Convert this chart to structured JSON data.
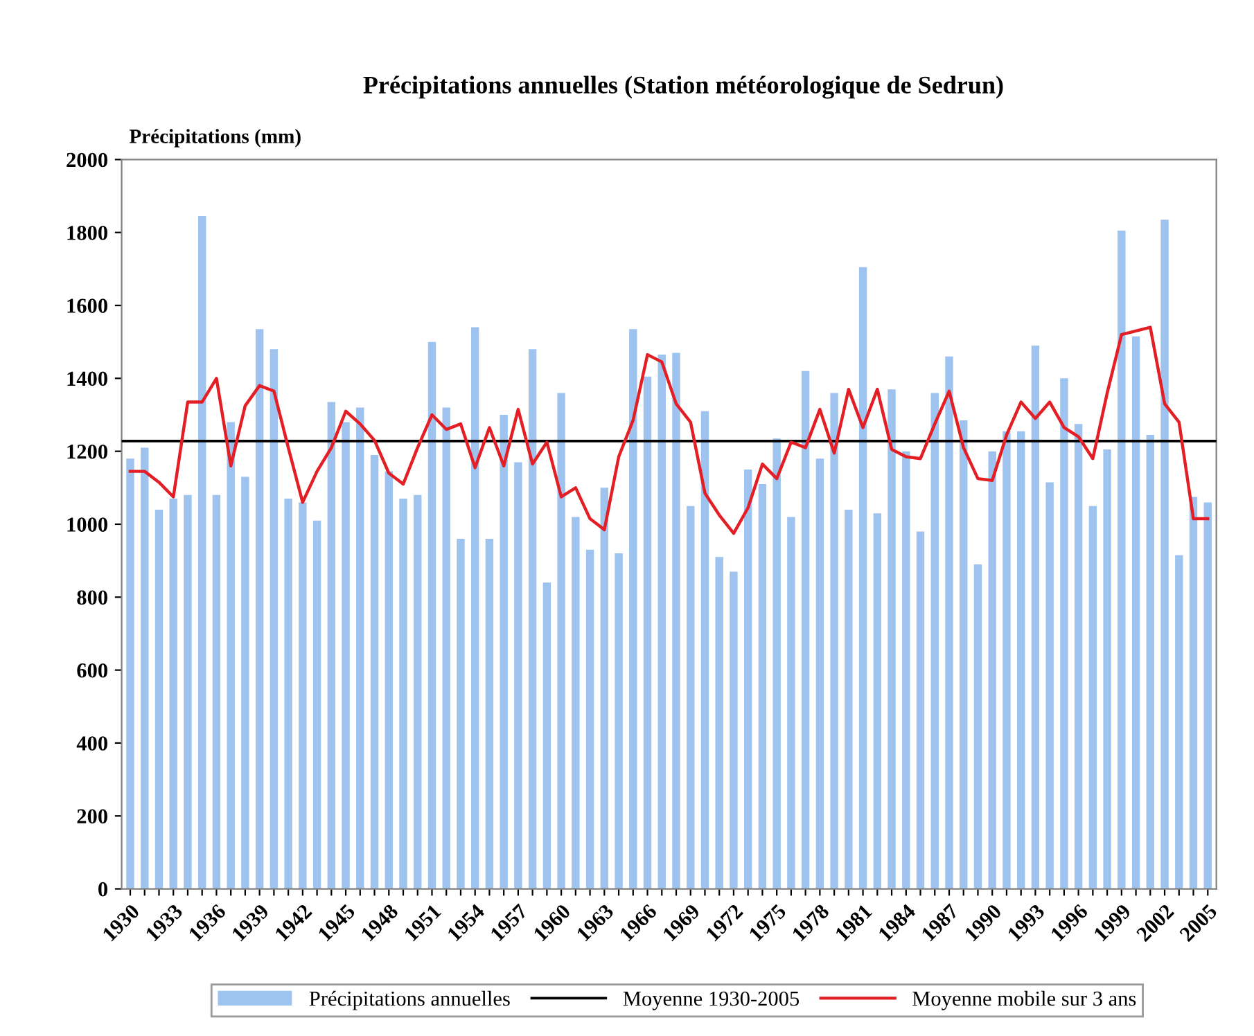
{
  "chart_data": {
    "type": "bar",
    "title": "Précipitations annuelles (Station météorologique de Sedrun)",
    "ylabel": "Précipitations (mm)",
    "categories": [
      "1930",
      null,
      null,
      "1933",
      null,
      null,
      "1936",
      null,
      null,
      "1939",
      null,
      null,
      "1942",
      null,
      null,
      "1945",
      null,
      null,
      "1948",
      null,
      null,
      "1951",
      null,
      null,
      "1954",
      null,
      null,
      "1957",
      null,
      null,
      "1960",
      null,
      null,
      "1963",
      null,
      null,
      "1966",
      null,
      null,
      "1969",
      null,
      null,
      "1972",
      null,
      null,
      "1975",
      null,
      null,
      "1978",
      null,
      null,
      "1981",
      null,
      null,
      "1984",
      null,
      null,
      "1987",
      null,
      null,
      "1990",
      null,
      null,
      "1993",
      null,
      null,
      "1996",
      null,
      null,
      "1999",
      null,
      null,
      "2002",
      null,
      null,
      "2005"
    ],
    "series": [
      {
        "name": "Précipitations annuelles",
        "color": "#9dc3ee",
        "values": [
          1180,
          1210,
          1040,
          1070,
          1080,
          1845,
          1080,
          1280,
          1130,
          1535,
          1480,
          1070,
          1060,
          1010,
          1335,
          1280,
          1320,
          1190,
          1145,
          1070,
          1080,
          1500,
          1320,
          960,
          1540,
          960,
          1300,
          1170,
          1480,
          840,
          1360,
          1020,
          930,
          1100,
          920,
          1535,
          1405,
          1465,
          1470,
          1050,
          1310,
          910,
          870,
          1150,
          1110,
          1235,
          1020,
          1420,
          1180,
          1360,
          1040,
          1705,
          1030,
          1370,
          1200,
          980,
          1360,
          1460,
          1285,
          890,
          1200,
          1255,
          1255,
          1490,
          1115,
          1400,
          1275,
          1050,
          1205,
          1805,
          1515,
          1245,
          1835,
          915,
          1075,
          1060
        ]
      },
      {
        "name": "Moyenne mobile sur 3 ans",
        "type": "line",
        "color": "#e31e24",
        "values": [
          1145,
          1145,
          1115,
          1075,
          1335,
          1335,
          1400,
          1160,
          1325,
          1380,
          1365,
          1210,
          1060,
          1145,
          1210,
          1310,
          1275,
          1230,
          1140,
          1110,
          1210,
          1300,
          1260,
          1275,
          1155,
          1265,
          1160,
          1315,
          1165,
          1225,
          1075,
          1100,
          1015,
          985,
          1185,
          1285,
          1465,
          1445,
          1330,
          1280,
          1085,
          1025,
          975,
          1045,
          1165,
          1125,
          1225,
          1210,
          1315,
          1195,
          1370,
          1265,
          1370,
          1205,
          1185,
          1180,
          1275,
          1365,
          1210,
          1125,
          1120,
          1245,
          1335,
          1290,
          1335,
          1265,
          1240,
          1180,
          1360,
          1520,
          1530,
          1540,
          1330,
          1280,
          1015,
          1015
        ]
      }
    ],
    "ref_lines": [
      {
        "axis": "y",
        "value": 1228,
        "label": "Moyenne 1930-2005",
        "color": "#000000"
      }
    ],
    "ylim": [
      0,
      2000
    ],
    "yticks": [
      0,
      200,
      400,
      600,
      800,
      1000,
      1200,
      1400,
      1600,
      1800,
      2000
    ],
    "legend": "bottom",
    "grid": false
  }
}
